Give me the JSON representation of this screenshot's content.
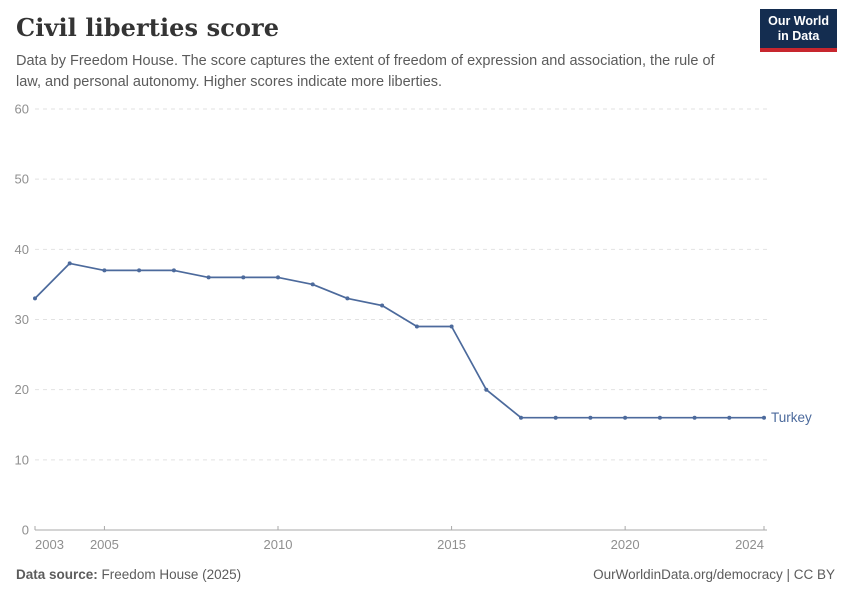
{
  "header": {
    "title": "Civil liberties score",
    "subtitle_lines": [
      "Data by Freedom House. The score captures the extent of freedom of expression and association, the rule of",
      "law, and personal autonomy. Higher scores indicate more liberties."
    ],
    "logo_lines": [
      "Our World",
      "in Data"
    ]
  },
  "chart_data": {
    "type": "line",
    "title": "Civil liberties score",
    "xlabel": "",
    "ylabel": "",
    "xlim": [
      2003,
      2024
    ],
    "ylim": [
      0,
      60
    ],
    "xticks": [
      2003,
      2005,
      2010,
      2015,
      2020,
      2024
    ],
    "yticks": [
      0,
      10,
      20,
      30,
      40,
      50,
      60
    ],
    "grid": "horizontal-dashed",
    "legend_position": "end-of-line-label",
    "series": [
      {
        "name": "Turkey",
        "x": [
          2003,
          2004,
          2005,
          2006,
          2007,
          2008,
          2009,
          2010,
          2011,
          2012,
          2013,
          2014,
          2015,
          2016,
          2017,
          2018,
          2019,
          2020,
          2021,
          2022,
          2023,
          2024
        ],
        "values": [
          33,
          38,
          37,
          37,
          37,
          36,
          36,
          36,
          35,
          33,
          32,
          29,
          29,
          20,
          16,
          16,
          16,
          16,
          16,
          16,
          16,
          16
        ]
      }
    ]
  },
  "footer": {
    "data_source_label": "Data source:",
    "data_source_value": "Freedom House (2025)",
    "license": "OurWorldinData.org/democracy | CC BY"
  },
  "colors": {
    "line": "#4c6a9c",
    "series_label": "#4c6a9c",
    "axis_text": "#8f8f8f",
    "gridline": "#e2e2e2",
    "axis_line": "#a9a9a9",
    "logo_navy": "#142d50",
    "logo_red": "#c7262e"
  }
}
